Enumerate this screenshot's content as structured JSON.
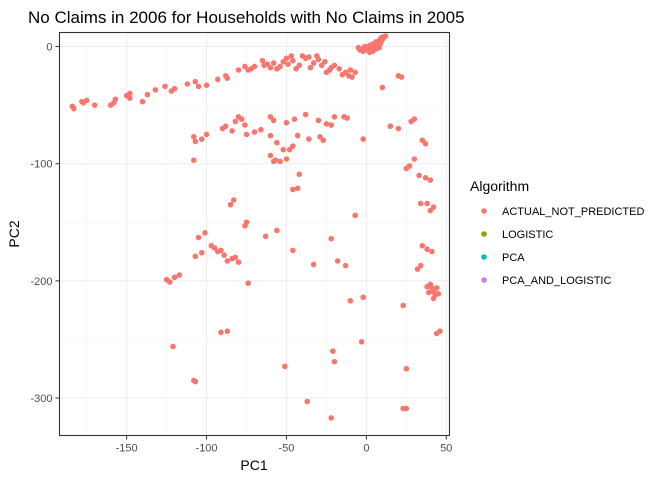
{
  "chart_data": {
    "type": "scatter",
    "title": "No Claims in 2006 for Households with No Claims in 2005",
    "xlabel": "PC1",
    "ylabel": "PC2",
    "xlim": [
      -192,
      52
    ],
    "ylim": [
      -332,
      12
    ],
    "xticks": [
      -150,
      -100,
      -50,
      0,
      50
    ],
    "yticks": [
      0,
      -100,
      -200,
      -300
    ],
    "xtick_labels": [
      "-150",
      "-100",
      "-50",
      "0",
      "50"
    ],
    "ytick_labels": [
      "0",
      "-100",
      "-200",
      "-300"
    ],
    "grid": true,
    "legend": {
      "title": "Algorithm",
      "position": "right",
      "entries": [
        {
          "name": "ACTUAL_NOT_PREDICTED",
          "color": "#F8766D"
        },
        {
          "name": "LOGISTIC",
          "color": "#7CAE00"
        },
        {
          "name": "PCA",
          "color": "#00BFC4"
        },
        {
          "name": "PCA_AND_LOGISTIC",
          "color": "#C77CFF"
        }
      ]
    },
    "series": [
      {
        "name": "ACTUAL_NOT_PREDICTED",
        "color": "#F8766D",
        "points": [
          [
            -184,
            -51
          ],
          [
            -183,
            -53
          ],
          [
            -178,
            -47
          ],
          [
            -177,
            -48
          ],
          [
            -175,
            -46
          ],
          [
            -170,
            -50
          ],
          [
            -160,
            -50
          ],
          [
            -158,
            -48
          ],
          [
            -157,
            -45
          ],
          [
            -150,
            -42
          ],
          [
            -148,
            -40
          ],
          [
            -148,
            -44
          ],
          [
            -140,
            -47
          ],
          [
            -137,
            -41
          ],
          [
            -132,
            -37
          ],
          [
            -126,
            -34
          ],
          [
            -122,
            -38
          ],
          [
            -120,
            -36
          ],
          [
            -112,
            -32
          ],
          [
            -107,
            -30
          ],
          [
            -105,
            -34
          ],
          [
            -100,
            -33
          ],
          [
            -93,
            -28
          ],
          [
            -88,
            -25
          ],
          [
            -87,
            -27
          ],
          [
            -80,
            -20
          ],
          [
            -76,
            -17
          ],
          [
            -74,
            -20
          ],
          [
            -72,
            -19
          ],
          [
            -70,
            -17
          ],
          [
            -65,
            -12
          ],
          [
            -64,
            -16
          ],
          [
            -62,
            -15
          ],
          [
            -60,
            -18
          ],
          [
            -58,
            -14
          ],
          [
            -56,
            -19
          ],
          [
            -54,
            -17
          ],
          [
            -52,
            -13
          ],
          [
            -50,
            -10
          ],
          [
            -49,
            -15
          ],
          [
            -47,
            -8
          ],
          [
            -46,
            -12
          ],
          [
            -44,
            -19
          ],
          [
            -42,
            -16
          ],
          [
            -40,
            -8
          ],
          [
            -38,
            -10
          ],
          [
            -36,
            -9
          ],
          [
            -35,
            -18
          ],
          [
            -33,
            -14
          ],
          [
            -31,
            -8
          ],
          [
            -30,
            -11
          ],
          [
            -28,
            -16
          ],
          [
            -26,
            -13
          ],
          [
            -25,
            -22
          ],
          [
            -23,
            -20
          ],
          [
            -22,
            -18
          ],
          [
            -20,
            -16
          ],
          [
            -17,
            -19
          ],
          [
            -15,
            -24
          ],
          [
            -13,
            -22
          ],
          [
            -11,
            -25
          ],
          [
            -10,
            -20
          ],
          [
            -9,
            -26
          ],
          [
            -5,
            -1
          ],
          [
            -4,
            -3
          ],
          [
            -3,
            -2
          ],
          [
            -2,
            -4
          ],
          [
            -1,
            0
          ],
          [
            0,
            -2
          ],
          [
            1,
            -1
          ],
          [
            2,
            1
          ],
          [
            3,
            -3
          ],
          [
            4,
            2
          ],
          [
            5,
            0
          ],
          [
            6,
            4
          ],
          [
            7,
            1
          ],
          [
            8,
            5
          ],
          [
            9,
            3
          ],
          [
            10,
            6
          ],
          [
            11,
            8
          ],
          [
            2,
            -5
          ],
          [
            4,
            -4
          ],
          [
            6,
            -2
          ],
          [
            8,
            -1
          ],
          [
            1,
            -3
          ],
          [
            3,
            -1
          ],
          [
            5,
            2
          ],
          [
            7,
            3
          ],
          [
            9,
            7
          ],
          [
            10,
            8
          ],
          [
            12,
            9
          ],
          [
            -7,
            -22
          ],
          [
            10,
            -35
          ],
          [
            20,
            -25
          ],
          [
            22,
            -26
          ],
          [
            -80,
            -60
          ],
          [
            -78,
            -62
          ],
          [
            -82,
            -64
          ],
          [
            -76,
            -67
          ],
          [
            -60,
            -60
          ],
          [
            -58,
            -63
          ],
          [
            -50,
            -65
          ],
          [
            -45,
            -62
          ],
          [
            -38,
            -58
          ],
          [
            -30,
            -63
          ],
          [
            -25,
            -66
          ],
          [
            -22,
            -67
          ],
          [
            -20,
            -60
          ],
          [
            -14,
            -60
          ],
          [
            -12,
            -61
          ],
          [
            15,
            -68
          ],
          [
            20,
            -70
          ],
          [
            30,
            -62
          ],
          [
            28,
            -64
          ],
          [
            -2,
            -79
          ],
          [
            -108,
            -77
          ],
          [
            -107,
            -81
          ],
          [
            -103,
            -79
          ],
          [
            -100,
            -75
          ],
          [
            -90,
            -70
          ],
          [
            -88,
            -68
          ],
          [
            -84,
            -72
          ],
          [
            -75,
            -75
          ],
          [
            -70,
            -73
          ],
          [
            -66,
            -71
          ],
          [
            -60,
            -76
          ],
          [
            -56,
            -82
          ],
          [
            -52,
            -88
          ],
          [
            -48,
            -88
          ],
          [
            -46,
            -85
          ],
          [
            -43,
            -76
          ],
          [
            -36,
            -79
          ],
          [
            -29,
            -77
          ],
          [
            -27,
            -80
          ],
          [
            -60,
            -93
          ],
          [
            -58,
            -98
          ],
          [
            -54,
            -98
          ],
          [
            -50,
            -96
          ],
          [
            -57,
            -97
          ],
          [
            -108,
            -97
          ],
          [
            -42,
            -109
          ],
          [
            -46,
            -122
          ],
          [
            -43,
            -121
          ],
          [
            -85,
            -135
          ],
          [
            -83,
            -131
          ],
          [
            -76,
            -153
          ],
          [
            -75,
            -150
          ],
          [
            -7,
            -144
          ],
          [
            35,
            -80
          ],
          [
            37,
            -83
          ],
          [
            30,
            -96
          ],
          [
            27,
            -102
          ],
          [
            25,
            -104
          ],
          [
            -105,
            -163
          ],
          [
            -101,
            -159
          ],
          [
            -97,
            -170
          ],
          [
            -95,
            -172
          ],
          [
            -93,
            -175
          ],
          [
            -91,
            -174
          ],
          [
            -89,
            -178
          ],
          [
            -87,
            -183
          ],
          [
            -84,
            -181
          ],
          [
            -82,
            -180
          ],
          [
            -80,
            -184
          ],
          [
            -63,
            -162
          ],
          [
            -56,
            -157
          ],
          [
            -46,
            -174
          ],
          [
            -22,
            -164
          ],
          [
            -18,
            -183
          ],
          [
            -13,
            -187
          ],
          [
            33,
            -110
          ],
          [
            37,
            -112
          ],
          [
            40,
            -114
          ],
          [
            34,
            -134
          ],
          [
            38,
            -134
          ],
          [
            42,
            -137
          ],
          [
            40,
            -140
          ],
          [
            35,
            -170
          ],
          [
            38,
            -173
          ],
          [
            41,
            -175
          ],
          [
            32,
            -190
          ],
          [
            34,
            -187
          ],
          [
            -125,
            -199
          ],
          [
            -123,
            -201
          ],
          [
            -120,
            -197
          ],
          [
            -117,
            -195
          ],
          [
            -107,
            -179
          ],
          [
            -103,
            -176
          ],
          [
            -74,
            -202
          ],
          [
            -33,
            -186
          ],
          [
            -10,
            -217
          ],
          [
            -2,
            -214
          ],
          [
            40,
            -203
          ],
          [
            41,
            -206
          ],
          [
            42,
            -209
          ],
          [
            39,
            -210
          ],
          [
            38,
            -205
          ],
          [
            43,
            -212
          ],
          [
            45,
            -211
          ],
          [
            44,
            -206
          ],
          [
            42,
            -215
          ],
          [
            23,
            -221
          ],
          [
            -121,
            -256
          ],
          [
            -91,
            -244
          ],
          [
            -87,
            -243
          ],
          [
            -51,
            -273
          ],
          [
            -21,
            -260
          ],
          [
            -20,
            -269
          ],
          [
            -3,
            -252
          ],
          [
            25,
            -275
          ],
          [
            46,
            -243
          ],
          [
            44,
            -245
          ],
          [
            -107,
            -286
          ],
          [
            -108,
            -285
          ],
          [
            -37,
            -303
          ],
          [
            -22,
            -317
          ],
          [
            23,
            -309
          ],
          [
            25,
            -309
          ]
        ]
      },
      {
        "name": "LOGISTIC",
        "color": "#7CAE00",
        "points": []
      },
      {
        "name": "PCA",
        "color": "#00BFC4",
        "points": []
      },
      {
        "name": "PCA_AND_LOGISTIC",
        "color": "#C77CFF",
        "points": []
      }
    ]
  }
}
